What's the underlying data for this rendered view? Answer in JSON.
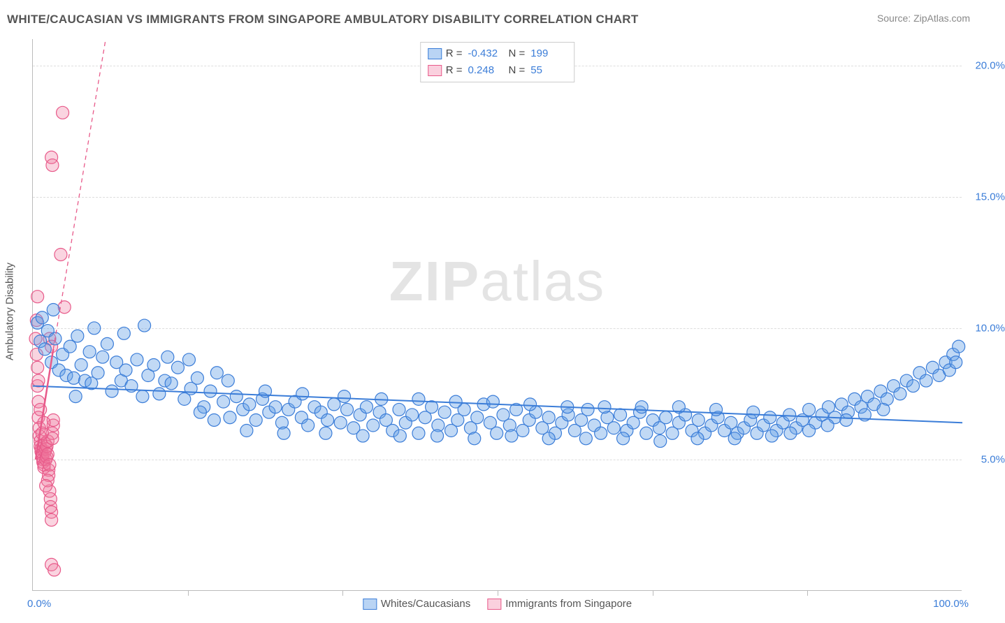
{
  "title": "WHITE/CAUCASIAN VS IMMIGRANTS FROM SINGAPORE AMBULATORY DISABILITY CORRELATION CHART",
  "source": "Source: ZipAtlas.com",
  "y_axis_label": "Ambulatory Disability",
  "watermark": {
    "zip": "ZIP",
    "atlas": "atlas"
  },
  "chart": {
    "type": "scatter-correlation",
    "background_color": "#ffffff",
    "grid_color": "#dddddd",
    "axis_color": "#bbbbbb",
    "xlim": [
      0,
      100
    ],
    "ylim": [
      0,
      21
    ],
    "x_ticks_minor": [
      16.7,
      33.3,
      50,
      66.7,
      83.3
    ],
    "y_gridlines": [
      {
        "v": 5,
        "label": "5.0%"
      },
      {
        "v": 10,
        "label": "10.0%"
      },
      {
        "v": 15,
        "label": "15.0%"
      },
      {
        "v": 20,
        "label": "20.0%"
      }
    ],
    "x_origin_label": "0.0%",
    "x_end_label": "100.0%",
    "tick_fontsize": 15,
    "tick_color": "#3b7dd8",
    "label_fontsize": 15,
    "label_color": "#555555",
    "title_fontsize": 17,
    "title_color": "#555555",
    "marker_radius": 9,
    "marker_stroke_width": 1.2
  },
  "series": {
    "blue": {
      "name": "Whites/Caucasians",
      "color_fill": "rgba(100,160,230,0.40)",
      "color_stroke": "#3b7dd8",
      "R": "-0.432",
      "N": "199",
      "trend": {
        "x1": 0,
        "y1": 7.8,
        "x2": 100,
        "y2": 6.4,
        "width": 2,
        "dash": ""
      },
      "trend_ext": {
        "x1": 0,
        "y1": 7.8,
        "x2": 100,
        "y2": 6.4,
        "dash": ""
      },
      "points": [
        [
          0.5,
          10.2
        ],
        [
          0.8,
          9.5
        ],
        [
          1.0,
          10.4
        ],
        [
          1.3,
          9.2
        ],
        [
          1.6,
          9.9
        ],
        [
          2.0,
          8.7
        ],
        [
          2.4,
          9.6
        ],
        [
          2.8,
          8.4
        ],
        [
          3.2,
          9.0
        ],
        [
          3.6,
          8.2
        ],
        [
          4.0,
          9.3
        ],
        [
          4.4,
          8.1
        ],
        [
          4.8,
          9.7
        ],
        [
          5.2,
          8.6
        ],
        [
          5.6,
          8.0
        ],
        [
          6.1,
          9.1
        ],
        [
          6.6,
          10.0
        ],
        [
          7.0,
          8.3
        ],
        [
          7.5,
          8.9
        ],
        [
          8.0,
          9.4
        ],
        [
          8.5,
          7.6
        ],
        [
          9.0,
          8.7
        ],
        [
          9.5,
          8.0
        ],
        [
          10.0,
          8.4
        ],
        [
          10.6,
          7.8
        ],
        [
          11.2,
          8.8
        ],
        [
          11.8,
          7.4
        ],
        [
          12.4,
          8.2
        ],
        [
          13.0,
          8.6
        ],
        [
          13.6,
          7.5
        ],
        [
          14.2,
          8.0
        ],
        [
          14.9,
          7.9
        ],
        [
          15.6,
          8.5
        ],
        [
          16.3,
          7.3
        ],
        [
          17.0,
          7.7
        ],
        [
          17.7,
          8.1
        ],
        [
          18.4,
          7.0
        ],
        [
          19.1,
          7.6
        ],
        [
          19.8,
          8.3
        ],
        [
          20.5,
          7.2
        ],
        [
          21.2,
          6.6
        ],
        [
          21.9,
          7.4
        ],
        [
          22.6,
          6.9
        ],
        [
          23.3,
          7.1
        ],
        [
          24.0,
          6.5
        ],
        [
          24.7,
          7.3
        ],
        [
          25.4,
          6.8
        ],
        [
          26.1,
          7.0
        ],
        [
          26.8,
          6.4
        ],
        [
          27.5,
          6.9
        ],
        [
          28.2,
          7.2
        ],
        [
          28.9,
          6.6
        ],
        [
          29.6,
          6.3
        ],
        [
          30.3,
          7.0
        ],
        [
          31.0,
          6.8
        ],
        [
          31.7,
          6.5
        ],
        [
          32.4,
          7.1
        ],
        [
          33.1,
          6.4
        ],
        [
          33.8,
          6.9
        ],
        [
          34.5,
          6.2
        ],
        [
          35.2,
          6.7
        ],
        [
          35.9,
          7.0
        ],
        [
          36.6,
          6.3
        ],
        [
          37.3,
          6.8
        ],
        [
          38.0,
          6.5
        ],
        [
          38.7,
          6.1
        ],
        [
          39.4,
          6.9
        ],
        [
          40.1,
          6.4
        ],
        [
          40.8,
          6.7
        ],
        [
          41.5,
          6.0
        ],
        [
          42.2,
          6.6
        ],
        [
          42.9,
          7.0
        ],
        [
          43.6,
          6.3
        ],
        [
          44.3,
          6.8
        ],
        [
          45.0,
          6.1
        ],
        [
          45.7,
          6.5
        ],
        [
          46.4,
          6.9
        ],
        [
          47.1,
          6.2
        ],
        [
          47.8,
          6.6
        ],
        [
          48.5,
          7.1
        ],
        [
          49.2,
          6.4
        ],
        [
          49.9,
          6.0
        ],
        [
          50.6,
          6.7
        ],
        [
          51.3,
          6.3
        ],
        [
          52.0,
          6.9
        ],
        [
          52.7,
          6.1
        ],
        [
          53.4,
          6.5
        ],
        [
          54.1,
          6.8
        ],
        [
          54.8,
          6.2
        ],
        [
          55.5,
          6.6
        ],
        [
          56.2,
          6.0
        ],
        [
          56.9,
          6.4
        ],
        [
          57.6,
          6.7
        ],
        [
          58.3,
          6.1
        ],
        [
          59.0,
          6.5
        ],
        [
          59.7,
          6.9
        ],
        [
          60.4,
          6.3
        ],
        [
          61.1,
          6.0
        ],
        [
          61.8,
          6.6
        ],
        [
          62.5,
          6.2
        ],
        [
          63.2,
          6.7
        ],
        [
          63.9,
          6.1
        ],
        [
          64.6,
          6.4
        ],
        [
          65.3,
          6.8
        ],
        [
          66.0,
          6.0
        ],
        [
          66.7,
          6.5
        ],
        [
          67.4,
          6.2
        ],
        [
          68.1,
          6.6
        ],
        [
          68.8,
          6.0
        ],
        [
          69.5,
          6.4
        ],
        [
          70.2,
          6.7
        ],
        [
          70.9,
          6.1
        ],
        [
          71.6,
          6.5
        ],
        [
          72.3,
          6.0
        ],
        [
          73.0,
          6.3
        ],
        [
          73.7,
          6.6
        ],
        [
          74.4,
          6.1
        ],
        [
          75.1,
          6.4
        ],
        [
          75.8,
          6.0
        ],
        [
          76.5,
          6.2
        ],
        [
          77.2,
          6.5
        ],
        [
          77.9,
          6.0
        ],
        [
          78.6,
          6.3
        ],
        [
          79.3,
          6.6
        ],
        [
          80.0,
          6.1
        ],
        [
          80.7,
          6.4
        ],
        [
          81.4,
          6.7
        ],
        [
          82.1,
          6.2
        ],
        [
          82.8,
          6.5
        ],
        [
          83.5,
          6.9
        ],
        [
          84.2,
          6.4
        ],
        [
          84.9,
          6.7
        ],
        [
          85.6,
          7.0
        ],
        [
          86.3,
          6.6
        ],
        [
          87.0,
          7.1
        ],
        [
          87.7,
          6.8
        ],
        [
          88.4,
          7.3
        ],
        [
          89.1,
          7.0
        ],
        [
          89.8,
          7.4
        ],
        [
          90.5,
          7.1
        ],
        [
          91.2,
          7.6
        ],
        [
          91.9,
          7.3
        ],
        [
          92.6,
          7.8
        ],
        [
          93.3,
          7.5
        ],
        [
          94.0,
          8.0
        ],
        [
          94.7,
          7.8
        ],
        [
          95.4,
          8.3
        ],
        [
          96.1,
          8.0
        ],
        [
          96.8,
          8.5
        ],
        [
          97.5,
          8.2
        ],
        [
          98.2,
          8.7
        ],
        [
          98.6,
          8.4
        ],
        [
          99.0,
          9.0
        ],
        [
          99.3,
          8.7
        ],
        [
          99.6,
          9.3
        ],
        [
          2.2,
          10.7
        ],
        [
          4.6,
          7.4
        ],
        [
          6.3,
          7.9
        ],
        [
          9.8,
          9.8
        ],
        [
          12.0,
          10.1
        ],
        [
          14.5,
          8.9
        ],
        [
          16.8,
          8.8
        ],
        [
          18.0,
          6.8
        ],
        [
          19.5,
          6.5
        ],
        [
          21.0,
          8.0
        ],
        [
          23.0,
          6.1
        ],
        [
          25.0,
          7.6
        ],
        [
          27.0,
          6.0
        ],
        [
          29.0,
          7.5
        ],
        [
          31.5,
          6.0
        ],
        [
          33.5,
          7.4
        ],
        [
          35.5,
          5.9
        ],
        [
          37.5,
          7.3
        ],
        [
          39.5,
          5.9
        ],
        [
          41.5,
          7.3
        ],
        [
          43.5,
          5.9
        ],
        [
          45.5,
          7.2
        ],
        [
          47.5,
          5.8
        ],
        [
          49.5,
          7.2
        ],
        [
          51.5,
          5.9
        ],
        [
          53.5,
          7.1
        ],
        [
          55.5,
          5.8
        ],
        [
          57.5,
          7.0
        ],
        [
          59.5,
          5.8
        ],
        [
          61.5,
          7.0
        ],
        [
          63.5,
          5.8
        ],
        [
          65.5,
          7.0
        ],
        [
          67.5,
          5.7
        ],
        [
          69.5,
          7.0
        ],
        [
          71.5,
          5.8
        ],
        [
          73.5,
          6.9
        ],
        [
          75.5,
          5.8
        ],
        [
          77.5,
          6.8
        ],
        [
          79.5,
          5.9
        ],
        [
          81.5,
          6.0
        ],
        [
          83.5,
          6.1
        ],
        [
          85.5,
          6.3
        ],
        [
          87.5,
          6.5
        ],
        [
          89.5,
          6.7
        ],
        [
          91.5,
          6.9
        ]
      ]
    },
    "pink": {
      "name": "Immigrants from Singapore",
      "color_fill": "rgba(240,120,160,0.32)",
      "color_stroke": "#e85a8a",
      "R": "0.248",
      "N": "55",
      "trend": {
        "x1": 0.3,
        "y1": 5.0,
        "x2": 2.2,
        "y2": 9.2,
        "width": 2.5,
        "dash": ""
      },
      "trend_ext": {
        "x1": 2.2,
        "y1": 9.2,
        "x2": 15,
        "y2": 36,
        "dash": "6,5"
      },
      "points": [
        [
          0.3,
          9.6
        ],
        [
          0.4,
          9.0
        ],
        [
          0.5,
          7.8
        ],
        [
          0.6,
          7.2
        ],
        [
          0.6,
          6.6
        ],
        [
          0.7,
          6.2
        ],
        [
          0.7,
          5.9
        ],
        [
          0.8,
          5.7
        ],
        [
          0.8,
          5.5
        ],
        [
          0.9,
          5.4
        ],
        [
          0.9,
          5.3
        ],
        [
          1.0,
          5.2
        ],
        [
          1.0,
          5.1
        ],
        [
          1.1,
          5.0
        ],
        [
          1.1,
          4.9
        ],
        [
          1.2,
          4.8
        ],
        [
          1.2,
          4.7
        ],
        [
          1.3,
          5.3
        ],
        [
          1.3,
          5.6
        ],
        [
          1.4,
          5.0
        ],
        [
          1.4,
          5.4
        ],
        [
          1.5,
          5.1
        ],
        [
          1.5,
          5.5
        ],
        [
          1.6,
          5.2
        ],
        [
          1.6,
          5.7
        ],
        [
          1.7,
          4.6
        ],
        [
          1.7,
          4.4
        ],
        [
          1.8,
          4.8
        ],
        [
          1.8,
          3.8
        ],
        [
          1.9,
          3.5
        ],
        [
          1.9,
          3.2
        ],
        [
          2.0,
          3.0
        ],
        [
          2.0,
          2.7
        ],
        [
          2.1,
          6.0
        ],
        [
          2.1,
          5.8
        ],
        [
          2.2,
          6.3
        ],
        [
          2.2,
          6.5
        ],
        [
          2.0,
          1.0
        ],
        [
          2.3,
          0.8
        ],
        [
          0.5,
          8.5
        ],
        [
          0.6,
          8.0
        ],
        [
          0.4,
          10.3
        ],
        [
          0.5,
          11.2
        ],
        [
          1.8,
          9.6
        ],
        [
          2.0,
          9.3
        ],
        [
          2.0,
          16.5
        ],
        [
          2.1,
          16.2
        ],
        [
          3.0,
          12.8
        ],
        [
          3.2,
          18.2
        ],
        [
          3.4,
          10.8
        ],
        [
          0.8,
          6.9
        ],
        [
          1.0,
          6.0
        ],
        [
          1.2,
          6.4
        ],
        [
          1.6,
          4.2
        ],
        [
          1.4,
          4.0
        ]
      ]
    }
  },
  "legend_bottom": [
    {
      "swatch": "blue",
      "label": "Whites/Caucasians"
    },
    {
      "swatch": "pink",
      "label": "Immigrants from Singapore"
    }
  ]
}
